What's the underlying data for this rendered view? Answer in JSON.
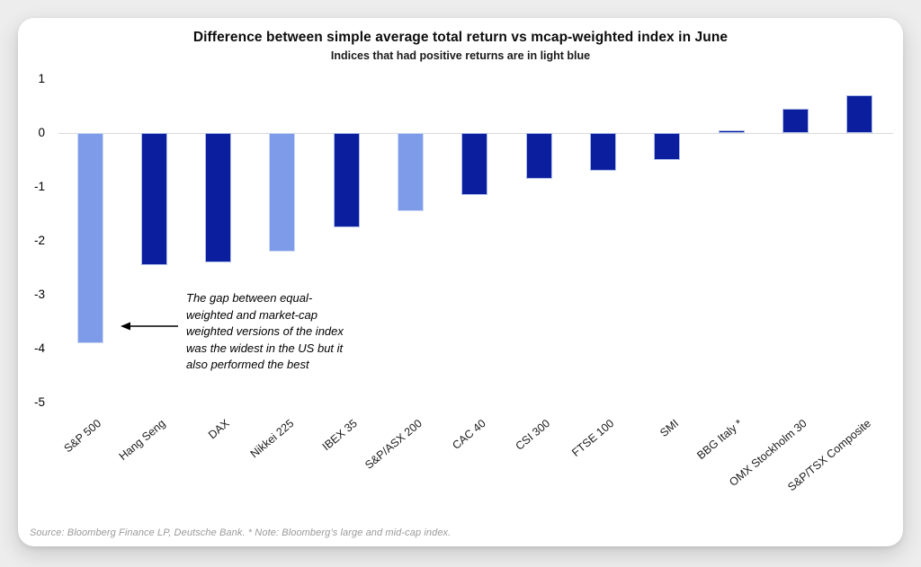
{
  "chart_data": {
    "type": "bar",
    "title": "Difference between simple average total return vs mcap-weighted index in June",
    "subtitle": "Indices that had positive returns are in light blue",
    "categories": [
      "S&P 500",
      "Hang Seng",
      "DAX",
      "Nikkei 225",
      "IBEX 35",
      "S&P/ASX 200",
      "CAC 40",
      "CSI 300",
      "FTSE 100",
      "SMI",
      "BBG Italy *",
      "OMX Stockholm 30",
      "S&P/TSX Composite"
    ],
    "values": [
      -3.9,
      -2.45,
      -2.4,
      -2.2,
      -1.75,
      -1.45,
      -1.15,
      -0.85,
      -0.7,
      -0.5,
      0.05,
      0.45,
      0.7
    ],
    "bar_colors": [
      "light",
      "dark",
      "dark",
      "light",
      "dark",
      "light",
      "dark",
      "dark",
      "dark",
      "dark",
      "dark",
      "dark",
      "dark"
    ],
    "colors": {
      "light_blue": "#7d9be8",
      "dark_blue": "#0a1e9e",
      "dark_edge": "#aebce8",
      "light_edge": "#cdd9f2",
      "zero_line": "#d9d9d9"
    },
    "xlabel": "",
    "ylabel": "",
    "ylim": [
      -5,
      1
    ],
    "yticks": [
      1,
      0,
      -1,
      -2,
      -3,
      -4,
      -5
    ],
    "grid": "zero-line-only",
    "legend": "none",
    "annotation": {
      "lines": [
        "The gap between equal-",
        "weighted and market-cap",
        "weighted versions of the index",
        "was the widest in the US but it",
        "also performed the best"
      ],
      "arrow": "left-pointing-arrow"
    }
  },
  "footer": {
    "text": "Source: Bloomberg Finance LP, Deutsche Bank. * Note: Bloomberg’s large and mid-cap index."
  }
}
